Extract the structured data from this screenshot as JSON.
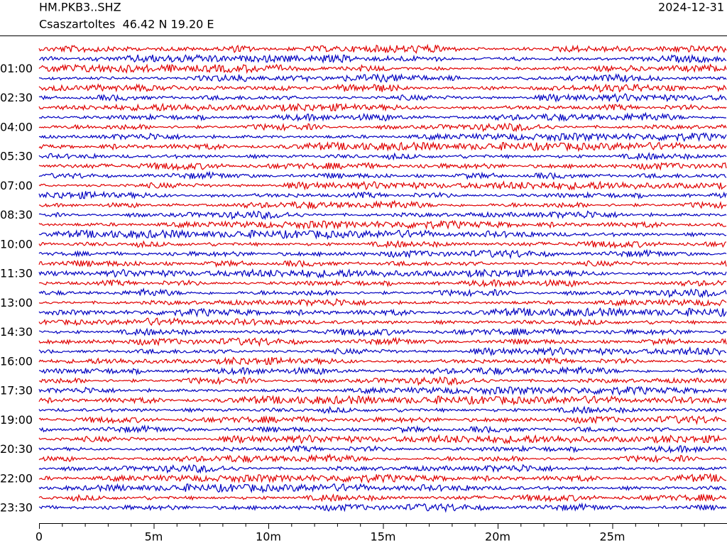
{
  "header": {
    "station": "HM.PKB3..SHZ",
    "location": "Csaszartoltes  46.42 N 19.20 E",
    "date": "2024-12-31"
  },
  "y_labels": [
    "01:00",
    "02:30",
    "04:00",
    "05:30",
    "07:00",
    "08:30",
    "10:00",
    "11:30",
    "13:00",
    "14:30",
    "16:00",
    "17:30",
    "19:00",
    "20:30",
    "22:00",
    "23:30"
  ],
  "x_labels": [
    "0",
    "5m",
    "10m",
    "15m",
    "20m",
    "25m"
  ]
}
